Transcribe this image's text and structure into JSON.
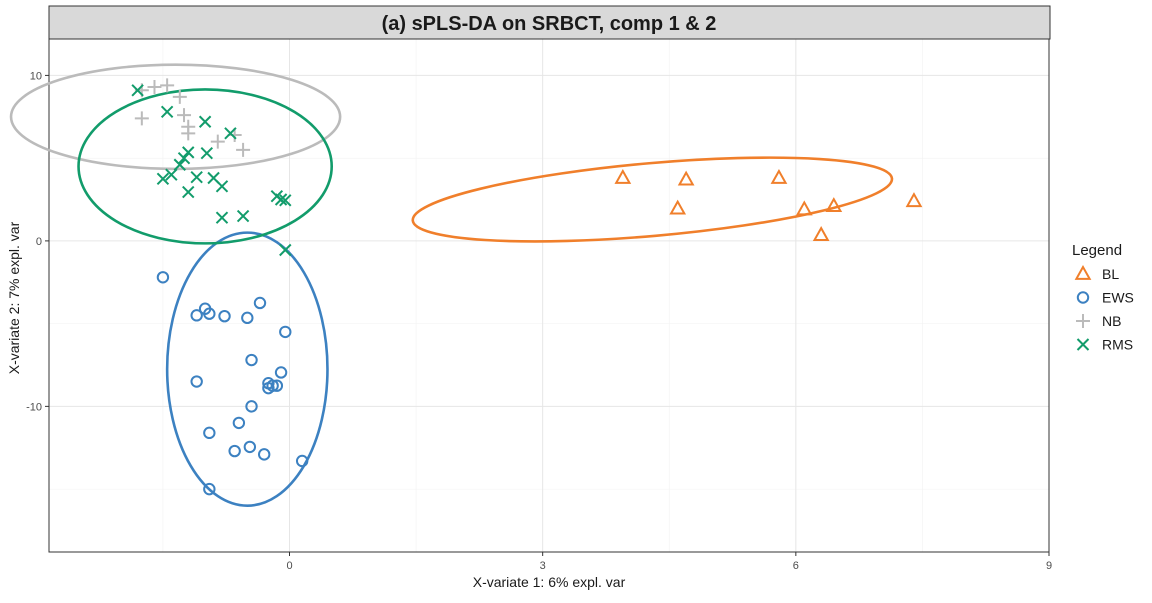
{
  "chart_data": {
    "type": "scatter",
    "title": "(a) sPLS-DA on SRBCT, comp 1 & 2",
    "xlabel": "X-variate 1: 6% expl. var",
    "ylabel": "X-variate 2: 7% expl. var",
    "xlim": [
      -2.85,
      9.0
    ],
    "ylim": [
      -18.8,
      12.2
    ],
    "x_ticks": [
      0,
      3,
      6,
      9
    ],
    "y_ticks": [
      10,
      0,
      -10
    ],
    "grid": true,
    "legend_title": "Legend",
    "legend_position": "right",
    "series": [
      {
        "name": "BL",
        "marker": "triangle",
        "color": "#F07F2B",
        "points": [
          [
            3.95,
            3.8
          ],
          [
            4.7,
            3.7
          ],
          [
            5.8,
            3.8
          ],
          [
            4.6,
            1.95
          ],
          [
            6.1,
            1.9
          ],
          [
            6.45,
            2.1
          ],
          [
            7.4,
            2.4
          ],
          [
            6.3,
            0.35
          ]
        ],
        "ellipse": {
          "cx": 4.3,
          "cy": 2.5,
          "rx": 2.85,
          "ry": 2.2,
          "angle": -5
        }
      },
      {
        "name": "EWS",
        "marker": "circle",
        "color": "#3C81C1",
        "points": [
          [
            -1.5,
            -2.2
          ],
          [
            -1.0,
            -4.1
          ],
          [
            -1.1,
            -4.5
          ],
          [
            -0.95,
            -4.4
          ],
          [
            -0.77,
            -4.55
          ],
          [
            -0.35,
            -3.75
          ],
          [
            -0.5,
            -4.65
          ],
          [
            -0.45,
            -7.2
          ],
          [
            -0.05,
            -5.5
          ],
          [
            -0.1,
            -7.95
          ],
          [
            -1.1,
            -8.5
          ],
          [
            -0.25,
            -8.6
          ],
          [
            -0.2,
            -8.75
          ],
          [
            -0.25,
            -8.9
          ],
          [
            -0.15,
            -8.75
          ],
          [
            -0.45,
            -10.0
          ],
          [
            -0.6,
            -11.0
          ],
          [
            -0.95,
            -11.6
          ],
          [
            -0.65,
            -12.7
          ],
          [
            -0.47,
            -12.45
          ],
          [
            -0.3,
            -12.9
          ],
          [
            0.15,
            -13.3
          ],
          [
            -0.95,
            -15.0
          ]
        ],
        "ellipse": {
          "cx": -0.5,
          "cy": -7.75,
          "rx": 0.95,
          "ry": 8.25,
          "angle": 0
        }
      },
      {
        "name": "NB",
        "marker": "plus",
        "color": "#BBBBBB",
        "points": [
          [
            -1.75,
            7.4
          ],
          [
            -1.75,
            9.1
          ],
          [
            -1.6,
            9.3
          ],
          [
            -1.45,
            9.4
          ],
          [
            -1.3,
            8.7
          ],
          [
            -1.25,
            7.6
          ],
          [
            -1.2,
            6.9
          ],
          [
            -1.2,
            6.5
          ],
          [
            -0.85,
            6.0
          ],
          [
            -0.65,
            6.4
          ],
          [
            -0.55,
            5.5
          ]
        ],
        "ellipse": {
          "cx": -1.35,
          "cy": 7.5,
          "rx": 1.95,
          "ry": 3.15,
          "angle": 0
        }
      },
      {
        "name": "RMS",
        "marker": "x",
        "color": "#129C6B",
        "points": [
          [
            -1.8,
            9.1
          ],
          [
            -1.45,
            7.8
          ],
          [
            -1.2,
            5.35
          ],
          [
            -1.25,
            5.0
          ],
          [
            -1.3,
            4.6
          ],
          [
            -1.4,
            4.0
          ],
          [
            -1.5,
            3.75
          ],
          [
            -1.1,
            3.85
          ],
          [
            -1.2,
            2.95
          ],
          [
            -1.0,
            7.2
          ],
          [
            -0.98,
            5.3
          ],
          [
            -0.9,
            3.8
          ],
          [
            -0.8,
            3.3
          ],
          [
            -0.7,
            6.5
          ],
          [
            -0.8,
            1.4
          ],
          [
            -0.55,
            1.5
          ],
          [
            -0.15,
            2.7
          ],
          [
            -0.1,
            2.5
          ],
          [
            -0.05,
            2.45
          ],
          [
            -0.05,
            -0.55
          ]
        ],
        "ellipse": {
          "cx": -1.0,
          "cy": 4.5,
          "rx": 1.5,
          "ry": 4.65,
          "angle": 0
        }
      }
    ]
  }
}
